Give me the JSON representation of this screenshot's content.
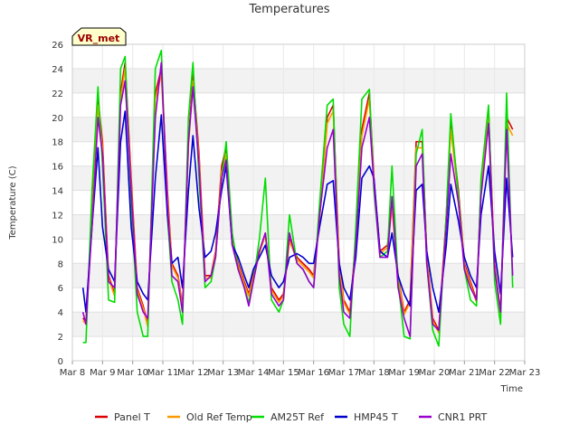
{
  "chart_data": {
    "type": "line",
    "title": "Temperatures",
    "xlabel": "Time",
    "ylabel": "Temperature (C)",
    "badge": "VR_met",
    "xlim": [
      0,
      15
    ],
    "ylim": [
      0,
      26
    ],
    "x_tick_labels": [
      "Mar 8",
      "Mar 9",
      "Mar 10",
      "Mar 11",
      "Mar 12",
      "Mar 13",
      "Mar 14",
      "Mar 15",
      "Mar 16",
      "Mar 17",
      "Mar 18",
      "Mar 19",
      "Mar 20",
      "Mar 21",
      "Mar 22",
      "Mar 23"
    ],
    "y_ticks": [
      0,
      2,
      4,
      6,
      8,
      10,
      12,
      14,
      16,
      18,
      20,
      22,
      24,
      26
    ],
    "x_unit": "days since Mar 8",
    "series": [
      {
        "name": "Panel T",
        "color": "#dd0000",
        "x": [
          0.35,
          0.45,
          0.65,
          0.85,
          1.0,
          1.2,
          1.4,
          1.6,
          1.75,
          1.95,
          2.15,
          2.35,
          2.5,
          2.75,
          2.95,
          3.15,
          3.3,
          3.5,
          3.65,
          3.85,
          4.0,
          4.2,
          4.4,
          4.6,
          4.75,
          4.95,
          5.1,
          5.3,
          5.5,
          5.7,
          5.85,
          6.0,
          6.2,
          6.4,
          6.6,
          6.85,
          7.0,
          7.2,
          7.45,
          7.65,
          7.85,
          8.0,
          8.2,
          8.45,
          8.65,
          8.85,
          9.0,
          9.2,
          9.4,
          9.6,
          9.85,
          10.0,
          10.2,
          10.45,
          10.6,
          10.8,
          11.0,
          11.2,
          11.4,
          11.6,
          11.75,
          11.95,
          12.15,
          12.4,
          12.55,
          12.8,
          13.0,
          13.2,
          13.4,
          13.55,
          13.8,
          14.0,
          14.2,
          14.4,
          14.6
        ],
        "y": [
          3.5,
          3.2,
          12,
          21.5,
          18,
          7,
          5.5,
          22,
          24.5,
          15,
          6,
          4.5,
          3,
          22,
          24,
          14,
          8,
          7,
          4.5,
          18,
          23.5,
          17,
          7,
          7,
          9,
          16,
          17.5,
          10,
          8,
          6.5,
          5.5,
          7,
          9,
          10.5,
          6,
          5,
          5.5,
          10,
          8.5,
          8,
          7.5,
          7,
          12,
          20,
          21,
          8,
          5,
          4,
          10,
          19,
          22,
          15,
          9,
          9.5,
          13,
          7,
          4,
          5,
          18,
          18,
          9,
          3.5,
          2.5,
          12,
          19.5,
          14,
          8,
          6.5,
          5,
          14.5,
          20.5,
          8,
          4,
          20,
          19
        ]
      },
      {
        "name": "Old Ref Temp",
        "color": "#ff9900",
        "x": [
          0.35,
          0.45,
          0.65,
          0.85,
          1.0,
          1.2,
          1.4,
          1.6,
          1.75,
          1.95,
          2.15,
          2.35,
          2.5,
          2.75,
          2.95,
          3.15,
          3.3,
          3.5,
          3.65,
          3.85,
          4.0,
          4.2,
          4.4,
          4.6,
          4.75,
          4.95,
          5.1,
          5.3,
          5.5,
          5.7,
          5.85,
          6.0,
          6.2,
          6.4,
          6.6,
          6.85,
          7.0,
          7.2,
          7.45,
          7.65,
          7.85,
          8.0,
          8.2,
          8.45,
          8.65,
          8.85,
          9.0,
          9.2,
          9.4,
          9.6,
          9.85,
          10.0,
          10.2,
          10.45,
          10.6,
          10.8,
          11.0,
          11.2,
          11.4,
          11.6,
          11.75,
          11.95,
          12.15,
          12.4,
          12.55,
          12.8,
          13.0,
          13.2,
          13.4,
          13.55,
          13.8,
          14.0,
          14.2,
          14.4,
          14.6
        ],
        "y": [
          3.3,
          3.0,
          11.5,
          21,
          17.5,
          6.8,
          5.3,
          21.5,
          24,
          14.5,
          5.8,
          4.3,
          2.8,
          21.5,
          23.5,
          13.5,
          7.8,
          6.8,
          4.3,
          17.5,
          23,
          16.5,
          6.8,
          6.8,
          8.8,
          15.5,
          17,
          9.8,
          7.8,
          6.3,
          5.3,
          6.8,
          8.8,
          10.3,
          5.8,
          4.8,
          5.3,
          9.8,
          8.3,
          7.8,
          7.3,
          6.8,
          11.5,
          19.5,
          20.5,
          7.8,
          4.8,
          3.8,
          9.8,
          18.5,
          21.5,
          14.5,
          8.8,
          9.3,
          12.5,
          6.8,
          3.8,
          4.8,
          17.5,
          17.5,
          8.8,
          3.3,
          2.3,
          11.5,
          19,
          13.5,
          7.8,
          6.3,
          4.8,
          14,
          20,
          7.8,
          3.8,
          19.5,
          18.5
        ]
      },
      {
        "name": "AM25T Ref",
        "color": "#00dd00",
        "x": [
          0.35,
          0.45,
          0.65,
          0.85,
          1.0,
          1.2,
          1.4,
          1.6,
          1.75,
          1.95,
          2.15,
          2.35,
          2.5,
          2.75,
          2.95,
          3.15,
          3.3,
          3.5,
          3.65,
          3.85,
          4.0,
          4.2,
          4.4,
          4.6,
          4.75,
          4.95,
          5.1,
          5.3,
          5.5,
          5.7,
          5.85,
          6.0,
          6.2,
          6.4,
          6.6,
          6.85,
          7.0,
          7.2,
          7.45,
          7.65,
          7.85,
          8.0,
          8.2,
          8.45,
          8.65,
          8.85,
          9.0,
          9.2,
          9.4,
          9.6,
          9.85,
          10.0,
          10.2,
          10.45,
          10.6,
          10.8,
          11.0,
          11.2,
          11.4,
          11.6,
          11.75,
          11.95,
          12.15,
          12.4,
          12.55,
          12.8,
          13.0,
          13.2,
          13.4,
          13.55,
          13.8,
          14.0,
          14.2,
          14.4,
          14.6
        ],
        "y": [
          1.5,
          1.5,
          14,
          22.5,
          16,
          5,
          4.8,
          24,
          25,
          13,
          4,
          2,
          2,
          24,
          25.5,
          12,
          6.5,
          5,
          3,
          20,
          24.5,
          15,
          6,
          6.5,
          8.5,
          15,
          18,
          10.5,
          7.5,
          6,
          4.8,
          6.5,
          10,
          15,
          5,
          4,
          5,
          12,
          8,
          7.5,
          6.5,
          6,
          13,
          21,
          21.5,
          6,
          3,
          2,
          11,
          21.5,
          22.3,
          14,
          8.5,
          9,
          16,
          6.5,
          2,
          1.8,
          17,
          19,
          8,
          2.5,
          1.2,
          12,
          20.3,
          13.5,
          7.5,
          5,
          4.5,
          15,
          21,
          6.5,
          3,
          22,
          6
        ]
      },
      {
        "name": "HMP45 T",
        "color": "#0000cc",
        "x": [
          0.35,
          0.45,
          0.65,
          0.85,
          1.0,
          1.2,
          1.4,
          1.6,
          1.75,
          1.95,
          2.15,
          2.35,
          2.5,
          2.75,
          2.95,
          3.15,
          3.3,
          3.5,
          3.65,
          3.85,
          4.0,
          4.2,
          4.4,
          4.6,
          4.75,
          4.95,
          5.1,
          5.3,
          5.5,
          5.7,
          5.85,
          6.0,
          6.2,
          6.4,
          6.6,
          6.85,
          7.0,
          7.2,
          7.45,
          7.65,
          7.85,
          8.0,
          8.2,
          8.45,
          8.65,
          8.85,
          9.0,
          9.2,
          9.4,
          9.6,
          9.85,
          10.0,
          10.2,
          10.45,
          10.6,
          10.8,
          11.0,
          11.2,
          11.4,
          11.6,
          11.75,
          11.95,
          12.15,
          12.4,
          12.55,
          12.8,
          13.0,
          13.2,
          13.4,
          13.55,
          13.8,
          14.0,
          14.2,
          14.4,
          14.6
        ],
        "y": [
          6,
          4,
          11,
          17.5,
          11,
          7.5,
          6.5,
          18,
          20.5,
          11,
          6.5,
          5.5,
          5,
          15,
          20.2,
          12,
          8,
          8.5,
          6,
          14,
          18.5,
          12.5,
          8.5,
          9,
          10.5,
          14,
          16,
          9.5,
          8.5,
          7,
          6,
          7.5,
          8.5,
          9.5,
          7,
          6,
          6.5,
          8.5,
          8.8,
          8.5,
          8,
          8,
          11,
          14.5,
          14.8,
          8,
          6,
          5,
          8.5,
          15,
          16,
          15,
          9,
          8.5,
          10.5,
          7,
          5.5,
          4.5,
          14,
          14.5,
          9,
          6,
          4,
          9.5,
          14.5,
          11.5,
          8.5,
          7,
          6,
          12,
          16,
          9,
          5.5,
          15,
          8.5
        ]
      },
      {
        "name": "CNR1 PRT",
        "color": "#9900cc",
        "x": [
          0.35,
          0.45,
          0.65,
          0.85,
          1.0,
          1.2,
          1.4,
          1.6,
          1.75,
          1.95,
          2.15,
          2.35,
          2.5,
          2.75,
          2.95,
          3.15,
          3.3,
          3.5,
          3.65,
          3.85,
          4.0,
          4.2,
          4.4,
          4.6,
          4.75,
          4.95,
          5.1,
          5.3,
          5.5,
          5.7,
          5.85,
          6.0,
          6.2,
          6.4,
          6.6,
          6.85,
          7.0,
          7.2,
          7.45,
          7.65,
          7.85,
          8.0,
          8.2,
          8.45,
          8.65,
          8.85,
          9.0,
          9.2,
          9.4,
          9.6,
          9.85,
          10.0,
          10.2,
          10.45,
          10.6,
          10.8,
          11.0,
          11.2,
          11.4,
          11.6,
          11.75,
          11.95,
          12.15,
          12.4,
          12.55,
          12.8,
          13.0,
          13.2,
          13.4,
          13.55,
          13.8,
          14.0,
          14.2,
          14.4,
          14.6
        ],
        "y": [
          4,
          3,
          11,
          20,
          17,
          6.5,
          6,
          21,
          23,
          14,
          5.5,
          4,
          3.5,
          20,
          24.5,
          13,
          7,
          6.5,
          4,
          18,
          22.5,
          16,
          6.5,
          7,
          8.5,
          15,
          16.5,
          9.5,
          7.5,
          6,
          4.5,
          6.5,
          9,
          10.5,
          5.5,
          4.5,
          5,
          10.5,
          8,
          7.5,
          6.5,
          6,
          12,
          17.5,
          19,
          7,
          4,
          3.5,
          9.5,
          17.5,
          20,
          14.5,
          8.5,
          8.5,
          13.5,
          6,
          3.5,
          2,
          16,
          17,
          8,
          3,
          2.5,
          11,
          17,
          13,
          7.5,
          6,
          5,
          13.5,
          19.5,
          7.5,
          4,
          19,
          7
        ]
      }
    ]
  }
}
